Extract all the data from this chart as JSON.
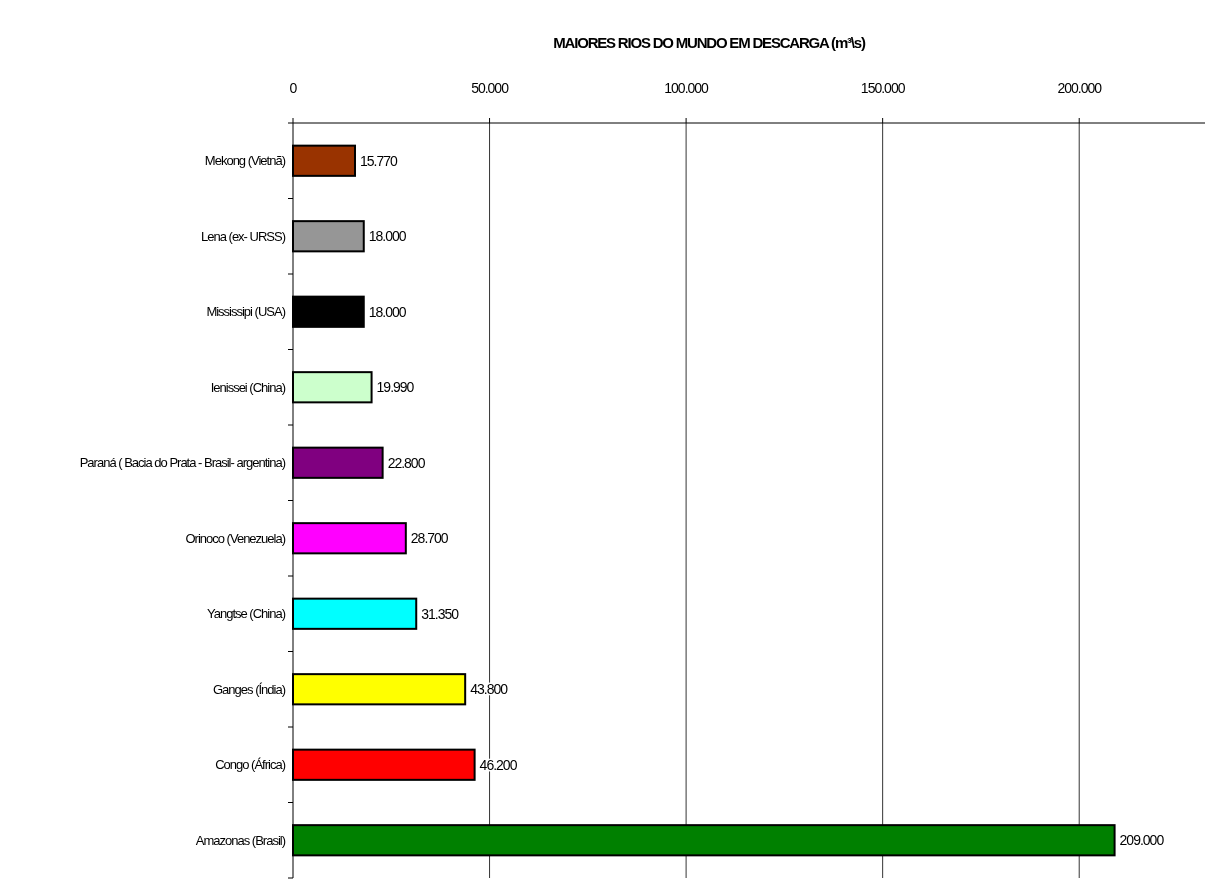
{
  "chart_data": {
    "type": "bar",
    "orientation": "horizontal",
    "title": "MAIORES RIOS DO MUNDO EM DESCARGA (m³\\s)",
    "categories": [
      "Mekong (Vietnã)",
      "Lena (ex- URSS)",
      "Mississipi (USA)",
      "Ienissei (China)",
      "Paraná ( Bacia do Prata - Brasil- argentina)",
      "Orinoco (Venezuela)",
      "Yangtse (China)",
      "Ganges (Índia)",
      "Congo (África)",
      "Amazonas (Brasil)"
    ],
    "values": [
      15770,
      18000,
      18000,
      19990,
      22800,
      28700,
      31350,
      43800,
      46200,
      209000
    ],
    "colors": [
      "#993300",
      "#969696",
      "#000000",
      "#ccffcc",
      "#800080",
      "#ff00ff",
      "#00ffff",
      "#ffff00",
      "#ff0000",
      "#008000"
    ],
    "value_labels": [
      "15.770",
      "18.000",
      "18.000",
      "19.990",
      "22.800",
      "28.700",
      "31.350",
      "43.800",
      "46.200",
      "209.000"
    ],
    "xlim": [
      0,
      232000
    ],
    "xticks": [
      0,
      {
        "value": 50000,
        "label": "50.000"
      },
      {
        "value": 100000,
        "label": "100.000"
      },
      {
        "value": 150000,
        "label": "150.000"
      },
      {
        "value": 200000,
        "label": "200.000"
      }
    ],
    "grid": "x"
  }
}
